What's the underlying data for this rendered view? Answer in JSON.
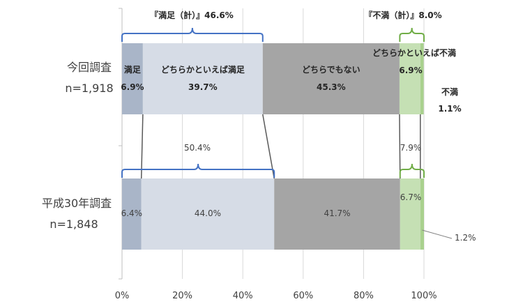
{
  "chart_data": {
    "type": "bar",
    "orientation": "horizontal",
    "stacked": "percent",
    "categories": [
      {
        "name": "今回調査",
        "sample": "n=1,918"
      },
      {
        "name": "平成30年調査",
        "sample": "n=1,848"
      }
    ],
    "series": [
      {
        "name": "満足",
        "values": [
          6.9,
          6.4
        ],
        "color": "#a9b5c8"
      },
      {
        "name": "どちらかといえば満足",
        "values": [
          39.7,
          44.0
        ],
        "color": "#d6dce6"
      },
      {
        "name": "どちらでもない",
        "values": [
          45.3,
          41.7
        ],
        "color": "#a5a5a5"
      },
      {
        "name": "どちらかといえば不満",
        "values": [
          6.9,
          6.7
        ],
        "color": "#c5e0b4"
      },
      {
        "name": "不満",
        "values": [
          1.1,
          1.2
        ],
        "color": "#a9d18e"
      }
    ],
    "value_labels": {
      "current": [
        "6.9%",
        "39.7%",
        "45.3%",
        "6.9%",
        "1.1%"
      ],
      "previous": [
        "6.4%",
        "44.0%",
        "41.7%",
        "6.7%",
        "1.2%"
      ]
    },
    "brackets": {
      "current_satisfied": {
        "label": "『満足（計）』46.6%",
        "value": 46.6
      },
      "current_dissatisfied": {
        "label": "『不満（計）』8.0%",
        "value": 8.0
      },
      "previous_satisfied": {
        "label": "50.4%",
        "value": 50.4
      },
      "previous_dissatisfied": {
        "label": "7.9%",
        "value": 7.9
      }
    },
    "xlim": [
      0,
      100
    ],
    "x_ticks": [
      "0%",
      "20%",
      "40%",
      "60%",
      "80%",
      "100%"
    ],
    "x_tick_values": [
      0,
      20,
      40,
      60,
      80,
      100
    ],
    "grid": true,
    "colors": {
      "bracket_satisfied": "#4472c4",
      "bracket_dissatisfied": "#70ad47",
      "grid": "#d9d9d9",
      "connector": "#595959"
    }
  }
}
